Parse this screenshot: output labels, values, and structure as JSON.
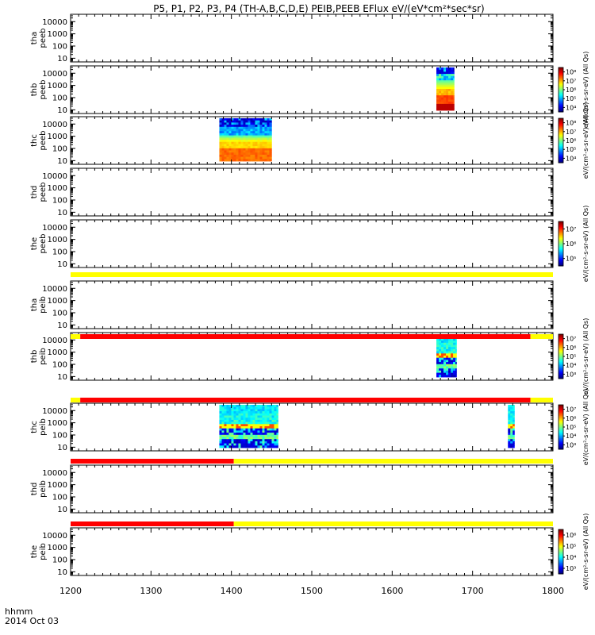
{
  "chart_data": {
    "type": "heatmap",
    "title": "P5, P1, P2, P3, P4 (TH-A,B,C,D,E) PEIB,PEEB EFlux eV/(eV*cm²*sec*sr)",
    "x_label_line1": "hhmm",
    "x_label_line2": "2014 Oct 03",
    "xlim": [
      1200,
      1800
    ],
    "x_ticks": [
      "1200",
      "1300",
      "1400",
      "1500",
      "1600",
      "1700",
      "1800"
    ],
    "y_scale": "log",
    "ylim": [
      5,
      40000
    ],
    "y_ticks": [
      "10",
      "100",
      "1000",
      "10000"
    ],
    "panels": [
      {
        "label": "tha\npeeb",
        "yticks": [
          "10",
          "100",
          "1000",
          "10000"
        ],
        "blocks": [],
        "colorbar": null
      },
      {
        "label": "thb\npeeb",
        "yticks": [
          "10",
          "100",
          "1000",
          "10000"
        ],
        "blocks": [
          {
            "x0": 1655,
            "x1": 1677,
            "profile": "peeb_b"
          }
        ],
        "colorbar": {
          "ticks": [
            "10⁴",
            "10⁵",
            "10⁶",
            "10⁷",
            "10⁸"
          ],
          "unit": "eV/(cm²-s-sr-eV)",
          "species": "(All Qs)"
        }
      },
      {
        "label": "thc\npeeb",
        "yticks": [
          "10",
          "100",
          "1000",
          "10000"
        ],
        "blocks": [
          {
            "x0": 1385,
            "x1": 1450,
            "profile": "peeb_c"
          }
        ],
        "colorbar": {
          "ticks": [
            "10⁴",
            "10⁵",
            "10⁶",
            "10⁷",
            "10⁸"
          ],
          "unit": "eV/(cm²-s-sr-eV)",
          "species": "(All Qs)"
        }
      },
      {
        "label": "thd\npeeb",
        "yticks": [
          "10",
          "100",
          "1000",
          "10000"
        ],
        "blocks": [],
        "colorbar": null
      },
      {
        "label": "the\npeeb",
        "yticks": [
          "10",
          "100",
          "1000",
          "10000"
        ],
        "blocks": [],
        "colorbar": {
          "ticks": [
            "10⁵",
            "10⁶",
            "10⁷"
          ],
          "unit": "eV/(cm²-s-sr-eV)",
          "species": "(All Qs)"
        }
      },
      {
        "label": "tha\npeib",
        "yticks": [
          "10",
          "100",
          "1000",
          "10000"
        ],
        "blocks": [],
        "colorbar": null
      },
      {
        "label": "thb\npeib",
        "yticks": [
          "10",
          "100",
          "1000",
          "10000"
        ],
        "blocks": [
          {
            "x0": 1655,
            "x1": 1680,
            "profile": "peib"
          }
        ],
        "colorbar": {
          "ticks": [
            "10³",
            "10⁴",
            "10⁵",
            "10⁶",
            "10⁷"
          ],
          "unit": "eV/(cm²-s-sr-eV)",
          "species": "(All Qs)"
        }
      },
      {
        "label": "thc\npeib",
        "yticks": [
          "10",
          "100",
          "1000",
          "10000"
        ],
        "blocks": [
          {
            "x0": 1385,
            "x1": 1458,
            "profile": "peib"
          },
          {
            "x0": 1744,
            "x1": 1752,
            "profile": "peib_narrow"
          }
        ],
        "colorbar": {
          "ticks": [
            "10³",
            "10⁴",
            "10⁵",
            "10⁶",
            "10⁷"
          ],
          "unit": "eV/(cm²-s-sr-eV)",
          "species": "(All Qs)"
        }
      },
      {
        "label": "thd\npeib",
        "yticks": [
          "10",
          "100",
          "1000",
          "10000"
        ],
        "blocks": [],
        "colorbar": null
      },
      {
        "label": "the\npeib",
        "yticks": [
          "10",
          "100",
          "1000",
          "10000"
        ],
        "blocks": [],
        "colorbar": {
          "ticks": [
            "10³",
            "10⁴",
            "10⁵",
            "10⁶"
          ],
          "unit": "eV/(cm²-s-sr-eV)",
          "species": "(All Qs)"
        }
      }
    ],
    "status_bars": [
      {
        "after_panel": 4,
        "segments": [
          {
            "x0": 1200,
            "x1": 1800,
            "color": "#ffff00"
          }
        ]
      },
      {
        "after_panel": 5,
        "segments": [
          {
            "x0": 1200,
            "x1": 1212,
            "color": "#ffff00"
          },
          {
            "x0": 1212,
            "x1": 1772,
            "color": "#ff0000"
          },
          {
            "x0": 1772,
            "x1": 1800,
            "color": "#ffff00"
          }
        ]
      },
      {
        "after_panel": 6,
        "segments": [
          {
            "x0": 1200,
            "x1": 1212,
            "color": "#ffff00"
          },
          {
            "x0": 1212,
            "x1": 1772,
            "color": "#ff0000"
          },
          {
            "x0": 1772,
            "x1": 1800,
            "color": "#ffff00"
          }
        ]
      },
      {
        "after_panel": 7,
        "segments": [
          {
            "x0": 1200,
            "x1": 1403,
            "color": "#ff0000"
          },
          {
            "x0": 1403,
            "x1": 1800,
            "color": "#ffff00"
          }
        ]
      },
      {
        "after_panel": 8,
        "segments": [
          {
            "x0": 1200,
            "x1": 1403,
            "color": "#ff0000"
          },
          {
            "x0": 1403,
            "x1": 1800,
            "color": "#ffff00"
          }
        ]
      }
    ],
    "colors": {
      "status_yellow": "#ffff00",
      "status_red": "#ff0000",
      "axis": "#000000"
    }
  }
}
